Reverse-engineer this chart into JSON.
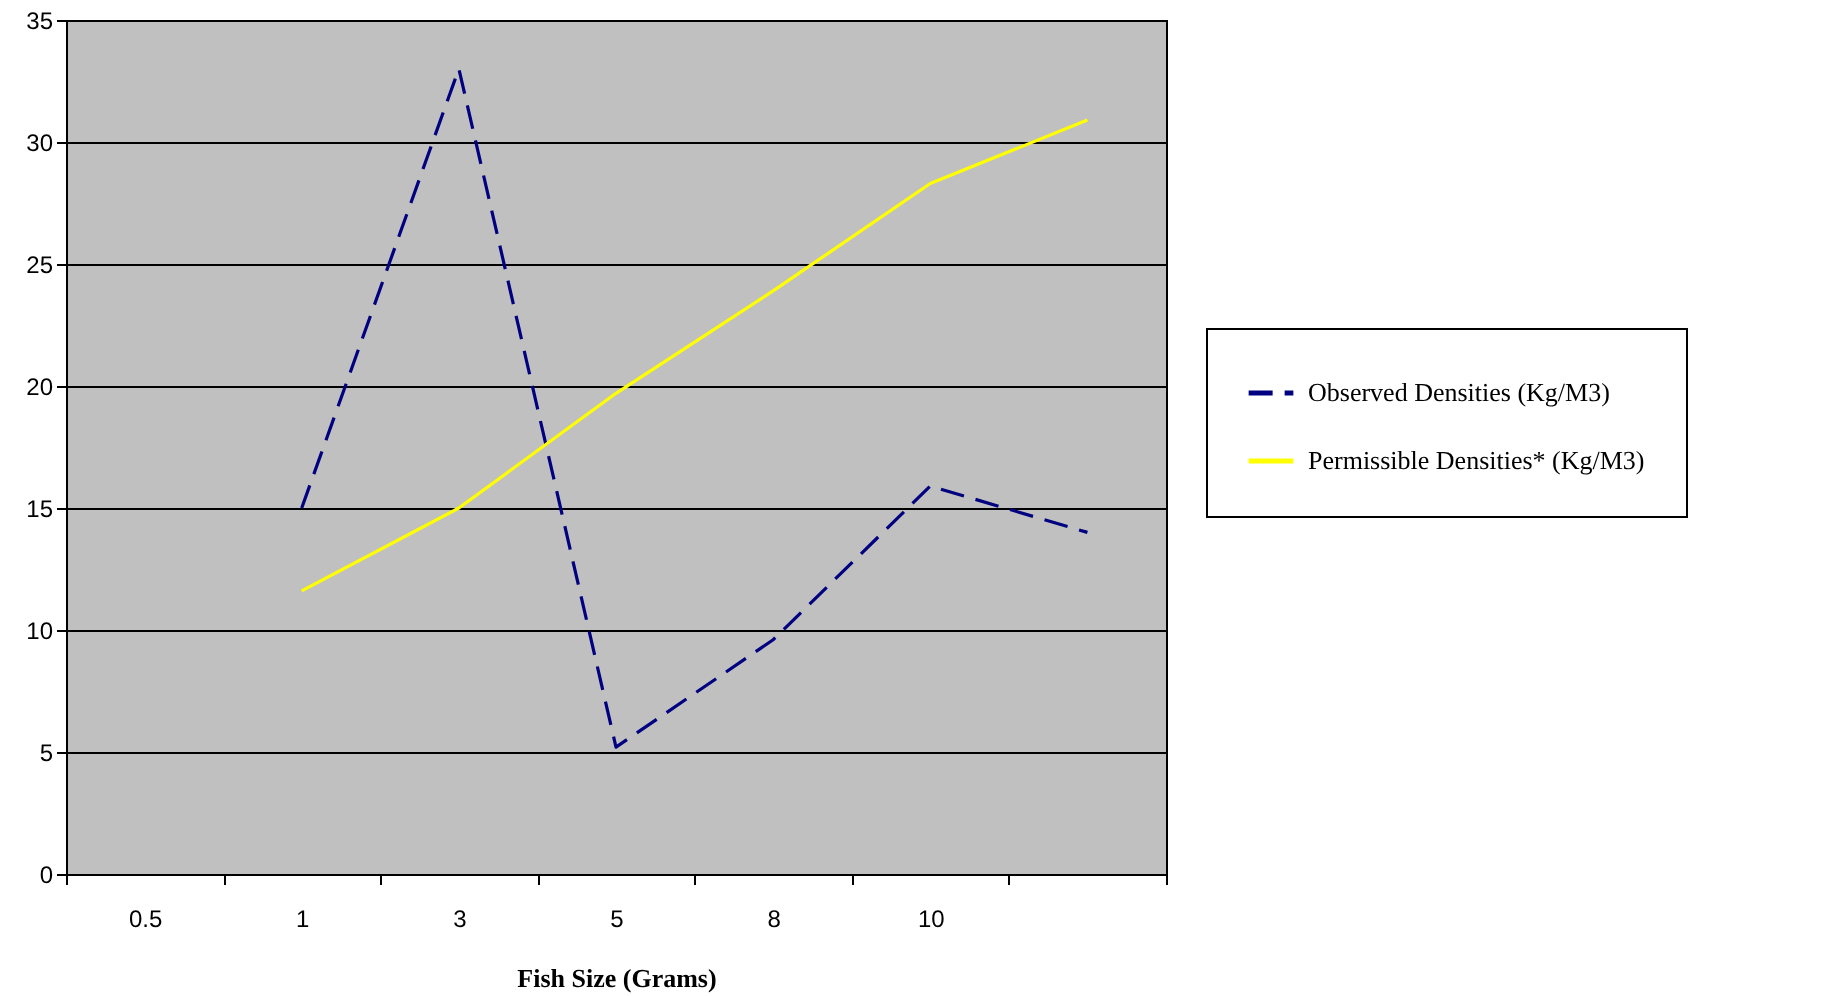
{
  "chart_data": {
    "type": "line",
    "xlabel": "Fish Size (Grams)",
    "categories": [
      "0.5",
      "1",
      "3",
      "5",
      "8",
      "10",
      null
    ],
    "series": [
      {
        "name": "Observed Densities  (Kg/M3)",
        "color": "#000080",
        "line_style": "dashed",
        "values": [
          null,
          15,
          33,
          5.2,
          9.6,
          15.9,
          14
        ]
      },
      {
        "name": "Permissible Densities* (Kg/M3)",
        "color": "#ffff00",
        "line_style": "solid",
        "values": [
          null,
          11.6,
          15,
          19.7,
          23.9,
          28.3,
          30.9
        ]
      }
    ],
    "ylim": [
      0,
      35
    ],
    "yticks": [
      0,
      5,
      10,
      15,
      20,
      25,
      30,
      35
    ],
    "grid": "y",
    "legend": "right"
  }
}
